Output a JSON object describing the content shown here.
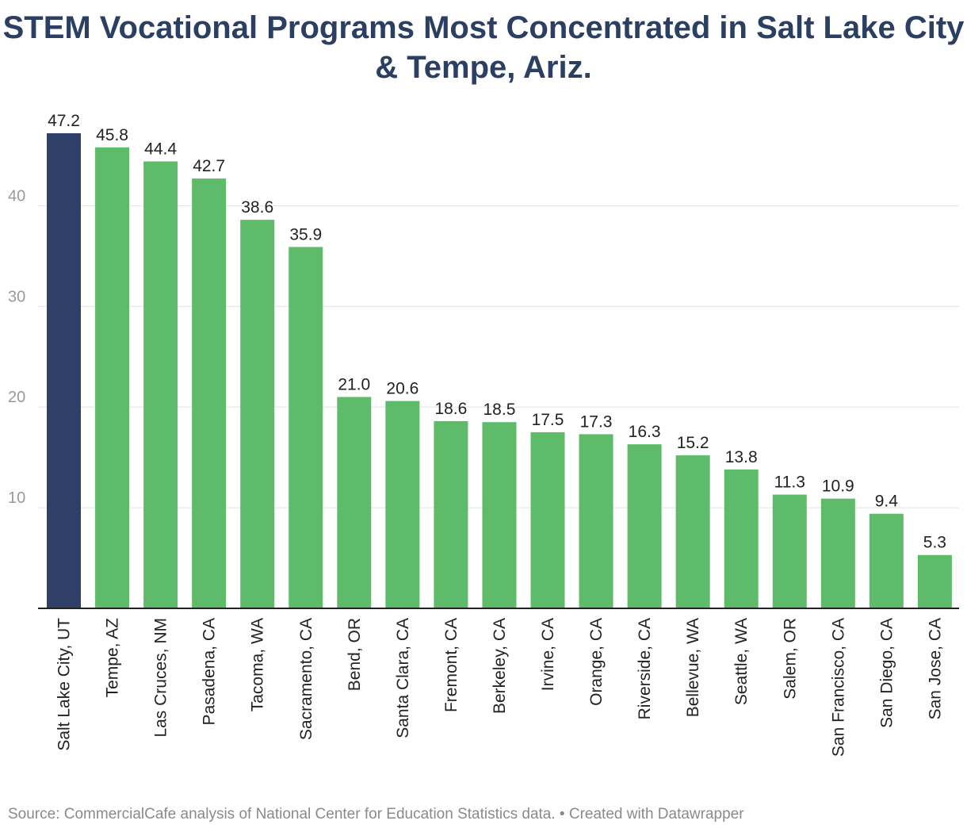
{
  "chart_data": {
    "type": "bar",
    "title": "STEM Vocational Programs Most Concentrated in Salt Lake City & Tempe, Ariz.",
    "categories": [
      "Salt Lake City, UT",
      "Tempe, AZ",
      "Las Cruces, NM",
      "Pasadena, CA",
      "Tacoma, WA",
      "Sacramento, CA",
      "Bend, OR",
      "Santa Clara, CA",
      "Fremont, CA",
      "Berkeley, CA",
      "Irvine, CA",
      "Orange, CA",
      "Riverside, CA",
      "Bellevue, WA",
      "Seattle, WA",
      "Salem, OR",
      "San Francisco, CA",
      "San Diego, CA",
      "San Jose, CA"
    ],
    "values": [
      47.2,
      45.8,
      44.4,
      42.7,
      38.6,
      35.9,
      21.0,
      20.6,
      18.6,
      18.5,
      17.5,
      17.3,
      16.3,
      15.2,
      13.8,
      11.3,
      10.9,
      9.4,
      5.3
    ],
    "value_labels": [
      "47.2",
      "45.8",
      "44.4",
      "42.7",
      "38.6",
      "35.9",
      "21.0",
      "20.6",
      "18.6",
      "18.5",
      "17.5",
      "17.3",
      "16.3",
      "15.2",
      "13.8",
      "11.3",
      "10.9",
      "9.4",
      "5.3"
    ],
    "highlight_index": 0,
    "yticks": [
      10,
      20,
      30,
      40
    ],
    "ylim": [
      0,
      47.2
    ],
    "grid": true,
    "colors": {
      "highlight": "#2e4068",
      "bar": "#5dbb6a",
      "grid": "#e2e2e2",
      "axis": "#222222",
      "tick_text": "#9a9a9a",
      "label_text": "#222222"
    },
    "source": "Source: CommercialCafe analysis of National Center for Education Statistics data. • Created with Datawrapper"
  }
}
